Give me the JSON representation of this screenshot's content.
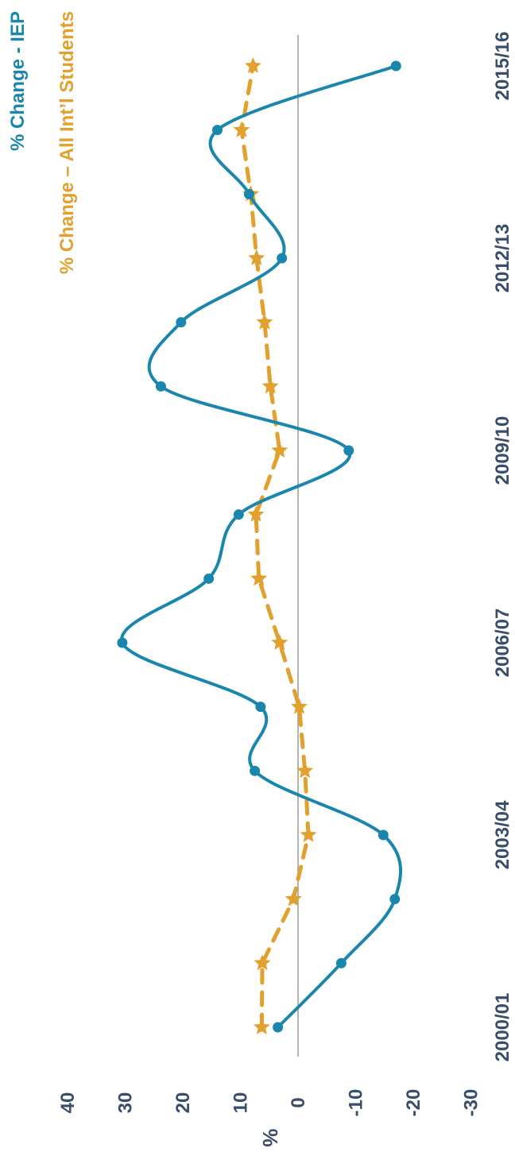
{
  "chart_data": {
    "type": "line",
    "orientation": "rotated-90-clockwise",
    "title": "",
    "xlabel": "",
    "ylabel": "%",
    "ylim": [
      -30,
      40
    ],
    "yticks": [
      40,
      30,
      20,
      10,
      0,
      -10,
      -20,
      -30
    ],
    "x": [
      "2000/01",
      "2001/02",
      "2002/03",
      "2003/04",
      "2004/05",
      "2005/06",
      "2006/07",
      "2007/08",
      "2008/09",
      "2009/10",
      "2010/11",
      "2011/12",
      "2012/13",
      "2013/14",
      "2014/15",
      "2015/16"
    ],
    "xtick_labels": [
      "2000/01",
      "2003/04",
      "2006/07",
      "2009/10",
      "2012/13",
      "2015/16"
    ],
    "grid": false,
    "zero_line": true,
    "legend_position": "top-right",
    "series": [
      {
        "name": "% Change - IEP",
        "color": "#1b86ad",
        "style": "solid-smooth",
        "marker": "circle",
        "values": [
          3.5,
          -7.5,
          -16.8,
          -14.8,
          7.5,
          6.5,
          30.5,
          15.5,
          10.3,
          -8.8,
          23.8,
          20.3,
          2.8,
          8.5,
          14,
          -17
        ]
      },
      {
        "name": "% Change – All Int’l Students",
        "color": "#e2a02e",
        "style": "dashed",
        "marker": "star",
        "values": [
          6.3,
          6.2,
          0.8,
          -1.8,
          -1.2,
          -0.2,
          3.2,
          6.8,
          7.3,
          3.2,
          4.8,
          5.8,
          7.2,
          8.2,
          9.8,
          7.8
        ]
      }
    ]
  }
}
